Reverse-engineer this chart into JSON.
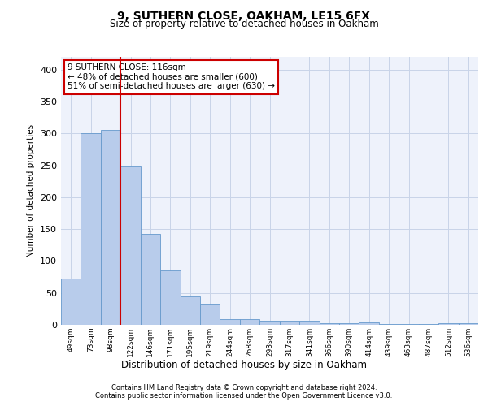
{
  "title1": "9, SUTHERN CLOSE, OAKHAM, LE15 6FX",
  "title2": "Size of property relative to detached houses in Oakham",
  "xlabel": "Distribution of detached houses by size in Oakham",
  "ylabel": "Number of detached properties",
  "categories": [
    "49sqm",
    "73sqm",
    "98sqm",
    "122sqm",
    "146sqm",
    "171sqm",
    "195sqm",
    "219sqm",
    "244sqm",
    "268sqm",
    "293sqm",
    "317sqm",
    "341sqm",
    "366sqm",
    "390sqm",
    "414sqm",
    "439sqm",
    "463sqm",
    "487sqm",
    "512sqm",
    "536sqm"
  ],
  "values": [
    72,
    300,
    305,
    248,
    143,
    85,
    45,
    32,
    9,
    9,
    6,
    6,
    6,
    2,
    2,
    4,
    1,
    1,
    1,
    3,
    3
  ],
  "bar_color": "#b8cceb",
  "bar_edge_color": "#6699cc",
  "vline_color": "#cc0000",
  "vline_pos": 2.5,
  "annotation_text": "9 SUTHERN CLOSE: 116sqm\n← 48% of detached houses are smaller (600)\n51% of semi-detached houses are larger (630) →",
  "annotation_box_color": "#ffffff",
  "annotation_box_edge": "#cc0000",
  "ylim": [
    0,
    420
  ],
  "yticks": [
    0,
    50,
    100,
    150,
    200,
    250,
    300,
    350,
    400
  ],
  "grid_color": "#c8d4e8",
  "background_color": "#eef2fb",
  "footer1": "Contains HM Land Registry data © Crown copyright and database right 2024.",
  "footer2": "Contains public sector information licensed under the Open Government Licence v3.0."
}
